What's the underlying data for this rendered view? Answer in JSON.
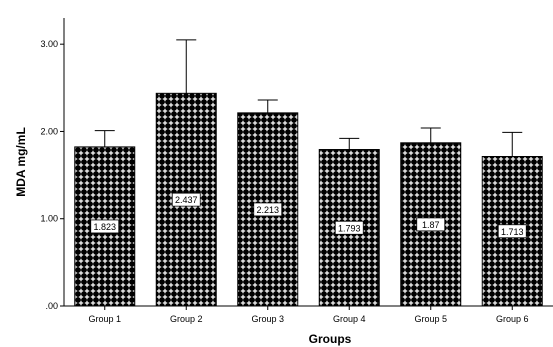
{
  "chart_data": {
    "type": "bar",
    "categories": [
      "Group 1",
      "Group 2",
      "Group 3",
      "Group 4",
      "Group 5",
      "Group 6"
    ],
    "values": [
      1.823,
      2.437,
      2.213,
      1.793,
      1.87,
      1.713
    ],
    "data_labels": [
      "1.823",
      "2.437",
      "2.213",
      "1.793",
      "1.87",
      "1.713"
    ],
    "error_upper": [
      2.01,
      3.05,
      2.36,
      1.92,
      2.04,
      1.99
    ],
    "title": "",
    "xlabel": "Groups",
    "ylabel": "MDA mg/mL",
    "ylim": [
      0,
      3.3
    ],
    "yticks": [
      0,
      1,
      2,
      3
    ],
    "ytick_labels": [
      ".00",
      "1.00",
      "2.00",
      "3.00"
    ],
    "grid": false,
    "bar_pattern": "cross-hatch",
    "colors": {
      "bar_fill": "#000000",
      "pattern_mark": "#ffffff",
      "axis": "#000000"
    }
  }
}
